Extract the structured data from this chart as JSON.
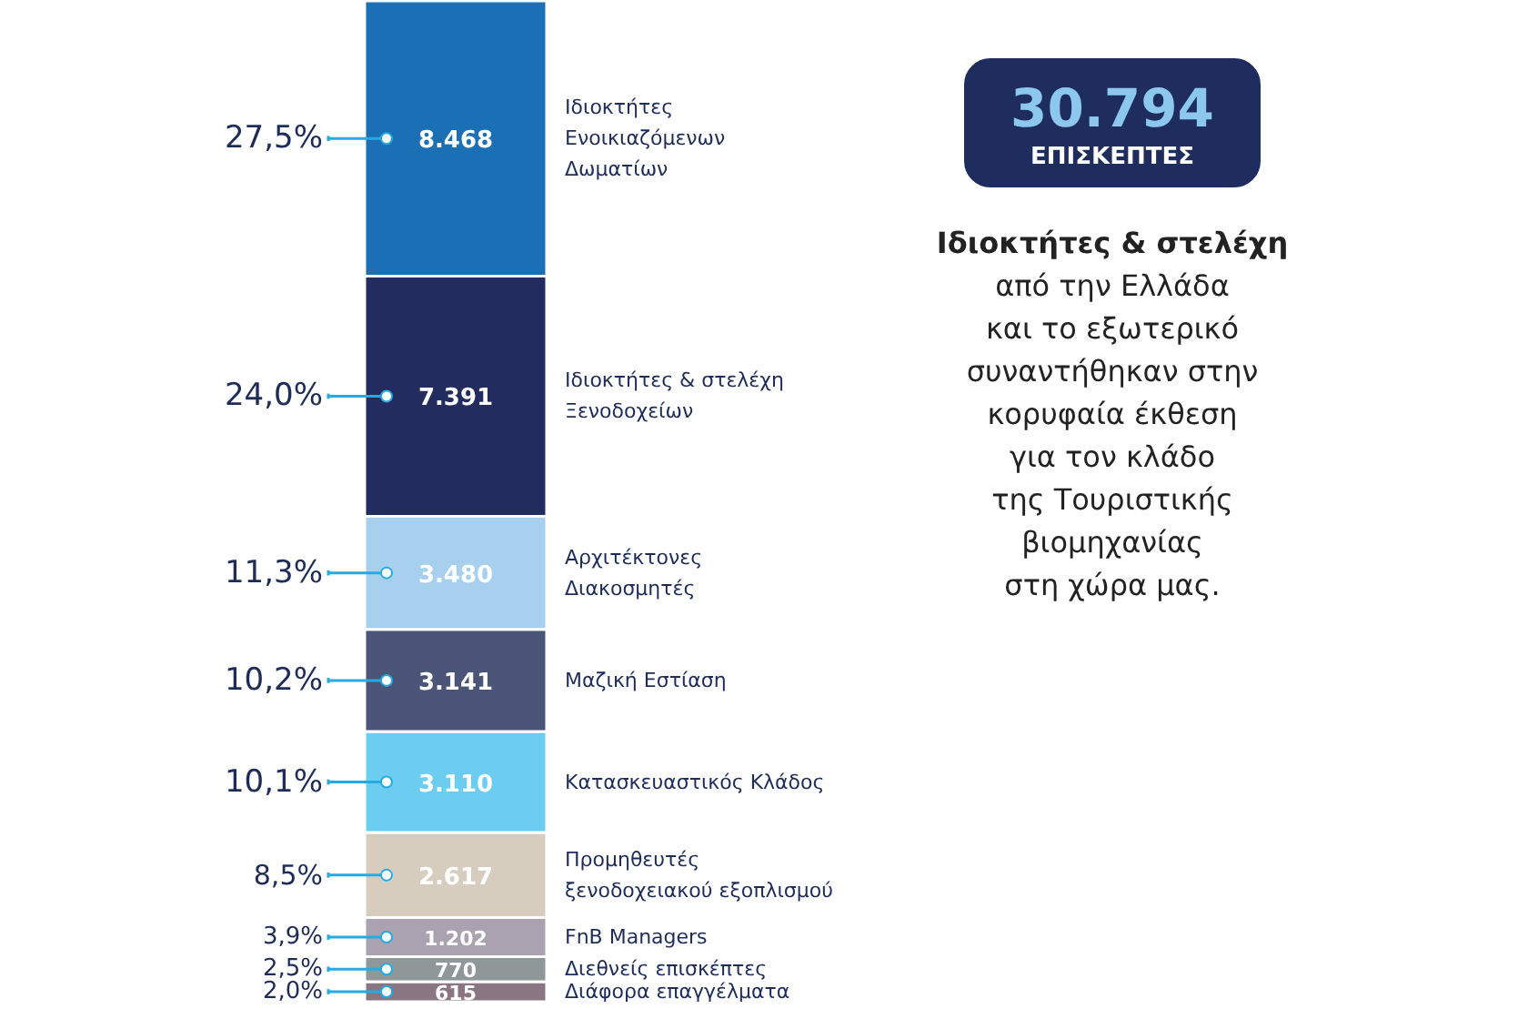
{
  "chart_data": {
    "type": "bar",
    "stacked": true,
    "title": "30.794",
    "subtitle": "ΕΠΙΣΚΕΠΤΕΣ",
    "categories": [
      null
    ],
    "ylim": [
      0,
      30794
    ],
    "series": [
      {
        "name": "Διάφορα επαγγέλματα",
        "color": "#8a7682",
        "values": [
          615
        ],
        "value_labels": [
          "615"
        ]
      },
      {
        "name": "Διεθνείς επισκέπτες",
        "color": "#8f9799",
        "values": [
          770
        ],
        "value_labels": [
          "770"
        ]
      },
      {
        "name": "FnB Managers",
        "color": "#aaa2b0",
        "values": [
          1202
        ],
        "value_labels": [
          "1.202"
        ]
      },
      {
        "name": "Προμηθευτές\nξενοδοχειακού εξοπλισμού",
        "color": "#d6cdbf",
        "values": [
          2617
        ],
        "value_labels": [
          "2.617"
        ]
      },
      {
        "name": "Κατασκευαστικός Κλάδος",
        "color": "#6ccdf1",
        "values": [
          3110
        ],
        "value_labels": [
          "3.110"
        ]
      },
      {
        "name": "Μαζική Εστίαση",
        "color": "#4a5578",
        "values": [
          3141
        ],
        "value_labels": [
          "3.141"
        ]
      },
      {
        "name": "Αρχιτέκτονες\nΔιακοσμητές",
        "color": "#a6d0ee",
        "values": [
          3480
        ],
        "value_labels": [
          "3.480"
        ]
      },
      {
        "name": "Ιδιοκτήτες & στελέχη\nΞενοδοχείων",
        "color": "#222c5e",
        "values": [
          7391
        ],
        "value_labels": [
          "7.391"
        ]
      },
      {
        "name": "Ιδιοκτήτες\nΕνοικιαζόμενων\nΔωματίων",
        "color": "#1b6fb4",
        "values": [
          8468
        ],
        "value_labels": [
          "8.468"
        ]
      }
    ],
    "annotations": [
      "2,0%",
      "2,5%",
      "3,9%",
      "8,5%",
      "10,1%",
      "10,2%",
      "11,3%",
      "24,0%",
      "27,5%",
      "Ιδιοκτήτες & στελέχη\nαπό την Ελλάδα\nκαι το εξωτερικό\nσυναντήθηκαν στην\nκορυφαία έκθεση\nγια τον κλάδο\nτης Τουριστικής\nβιομηχανίας\nστη χώρα μας."
    ],
    "legend": false,
    "grid": false
  }
}
